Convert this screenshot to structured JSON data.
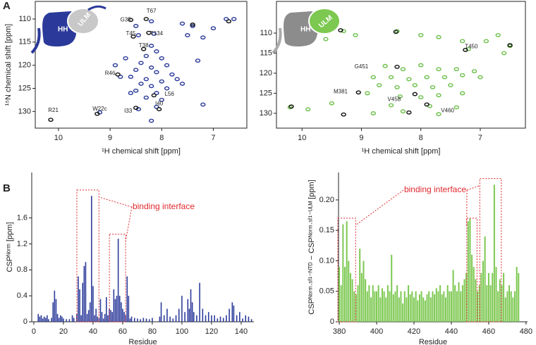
{
  "panel_labels": [
    "A",
    "B"
  ],
  "chart_data": [
    {
      "type": "scatter",
      "xlabel": "¹H chemical shift [ppm]",
      "ylabel": "¹⁵N chemical shift [ppm]",
      "inset_labels": [
        "HH",
        "ULM"
      ],
      "xlim": [
        10.45,
        6.35
      ],
      "ylim": [
        133.6,
        106.2
      ],
      "xticks": [
        10,
        9,
        8,
        7
      ],
      "yticks": [
        110,
        115,
        120,
        125,
        130
      ],
      "series": [
        {
          "color": "#2b3a9a",
          "x": [
            8.5,
            8.2,
            8.45,
            8.15,
            8.2,
            7.6,
            7.4,
            7.5,
            7.2,
            7.0,
            6.75,
            6.6,
            8.1,
            8.3,
            8.0,
            8.4,
            7.9,
            8.2,
            8.5,
            8.1,
            7.8,
            8.6,
            8.3,
            8.0,
            8.8,
            8.4,
            8.2,
            7.9,
            8.5,
            8.1,
            8.3,
            8.0,
            8.6,
            7.7,
            8.9,
            8.7,
            8.1,
            8.45,
            9.2,
            7.3,
            7.6,
            7.2,
            8.2
          ],
          "y": [
            111.5,
            110.5,
            113.5,
            113.2,
            115.8,
            111,
            111.5,
            113.5,
            114,
            112,
            110,
            110,
            117,
            118,
            118.5,
            119.5,
            120,
            120.5,
            121,
            121.5,
            122,
            122.5,
            123,
            123.5,
            122.5,
            124,
            124.5,
            125,
            125.5,
            126,
            127,
            127.5,
            126,
            123,
            120,
            118.5,
            129,
            129.5,
            130.2,
            119,
            124,
            128.5,
            132
          ]
        },
        {
          "color": "#111111",
          "x": [
            8.6,
            8.3,
            8.55,
            8.25,
            8.35,
            8.85,
            8.15,
            8.05,
            8.5,
            10.15,
            9.25,
            7.4,
            6.7
          ],
          "y": [
            110.2,
            110,
            113.8,
            113,
            116.5,
            122,
            126.5,
            129.5,
            129.2,
            131.8,
            130.5,
            111.2,
            110.5
          ]
        }
      ],
      "annotations": [
        {
          "text": "G35",
          "x": 8.7,
          "y": 110.2
        },
        {
          "text": "T67",
          "x": 8.2,
          "y": 108.3
        },
        {
          "text": "T45",
          "x": 8.6,
          "y": 113.2
        },
        {
          "text": "T134",
          "x": 8.1,
          "y": 113.2
        },
        {
          "text": "T38",
          "x": 8.35,
          "y": 115.8
        },
        {
          "text": "R46",
          "x": 9.0,
          "y": 121.8
        },
        {
          "text": "L56",
          "x": 7.85,
          "y": 126.3
        },
        {
          "text": "I40",
          "x": 8.05,
          "y": 128.3
        },
        {
          "text": "I33",
          "x": 8.65,
          "y": 129.9
        },
        {
          "text": "R21",
          "x": 10.1,
          "y": 129.8
        },
        {
          "text": "W22c",
          "x": 9.2,
          "y": 129.5
        }
      ]
    },
    {
      "type": "scatter",
      "xlabel": "¹H chemical shift [ppm]",
      "inset_labels": [
        "HH",
        "ULM"
      ],
      "xlim": [
        10.43,
        6.24
      ],
      "ylim": [
        133.7,
        102.1
      ],
      "xticks": [
        10,
        9,
        8,
        7
      ],
      "yticks": [
        110,
        115,
        120,
        125,
        130
      ],
      "series": [
        {
          "color": "#6cc04a",
          "x": [
            9.3,
            9.6,
            9.1,
            8.4,
            8.0,
            7.7,
            7.3,
            7.2,
            6.9,
            6.7,
            6.5,
            8.6,
            8.3,
            8.0,
            7.7,
            7.4,
            7.1,
            8.8,
            8.5,
            8.2,
            7.9,
            7.6,
            7.3,
            7.0,
            8.7,
            8.4,
            8.1,
            7.8,
            7.5,
            8.9,
            8.35,
            8.0,
            7.7,
            7.3,
            9.5,
            8.5,
            7.85,
            7.4,
            9.9,
            8.8,
            8.3,
            7.7,
            10.2,
            6.6
          ],
          "y": [
            109.5,
            111.5,
            110.5,
            109.5,
            110.5,
            111,
            112,
            114,
            112,
            110.5,
            113.2,
            118.2,
            119,
            118,
            119,
            119,
            119.5,
            121,
            121,
            121.5,
            121,
            121,
            120.5,
            121,
            123,
            123.5,
            123,
            123.5,
            123,
            125,
            125.8,
            126,
            125.5,
            125,
            127.5,
            128,
            128.2,
            128.5,
            129,
            130,
            129.5,
            130.2,
            128.5,
            115
          ]
        },
        {
          "color": "#111111",
          "x": [
            9.35,
            8.42,
            7.25,
            6.5,
            8.4,
            9.05,
            8.1,
            7.9,
            9.3,
            10.18,
            8.2
          ],
          "y": [
            109.3,
            109.7,
            114.2,
            113,
            118.4,
            124.8,
            125.2,
            127.8,
            130.3,
            128.3,
            129.8
          ]
        }
      ],
      "annotations": [
        {
          "text": "T450",
          "x": 7.15,
          "y": 113.4
        },
        {
          "text": "G451",
          "x": 9.0,
          "y": 118.4
        },
        {
          "text": "M381",
          "x": 9.35,
          "y": 124.6
        },
        {
          "text": "V458",
          "x": 8.45,
          "y": 126.6
        },
        {
          "text": "V460",
          "x": 7.55,
          "y": 129.4
        }
      ]
    },
    {
      "type": "bar",
      "xlabel": "Residue",
      "ylabel": "CSPᴺᵒʳᵐ [ppm]",
      "color": "#2b3a9a",
      "xlim": [
        -1.4,
        148.6
      ],
      "ylim": [
        0,
        2.3
      ],
      "xticks": [
        0,
        20,
        40,
        60,
        80,
        100,
        120,
        140
      ],
      "yticks": [
        0,
        0.4,
        0.8,
        1.2,
        1.6
      ],
      "x": [
        3,
        4,
        5,
        6,
        7,
        8,
        9,
        10,
        12,
        13,
        14,
        15,
        16,
        17,
        18,
        19,
        20,
        22,
        24,
        26,
        27,
        29,
        30,
        31,
        32,
        33,
        34,
        35,
        36,
        37,
        38,
        39,
        40,
        41,
        42,
        43,
        44,
        45,
        46,
        47,
        48,
        49,
        50,
        51,
        52,
        53,
        54,
        55,
        56,
        57,
        58,
        59,
        60,
        61,
        62,
        63,
        64,
        65,
        66,
        68,
        70,
        72,
        74,
        76,
        78,
        80,
        85,
        86,
        88,
        90,
        92,
        94,
        96,
        98,
        100,
        102,
        104,
        105,
        106,
        107,
        108,
        110,
        112,
        114,
        116,
        118,
        120,
        122,
        124,
        126,
        128,
        130,
        132,
        134,
        135,
        137,
        139,
        141,
        143,
        145,
        147
      ],
      "values": [
        0.12,
        0.08,
        0.1,
        0.05,
        0.08,
        0.06,
        0.1,
        0.04,
        0.06,
        0.3,
        0.48,
        0.35,
        0.12,
        0.06,
        0.1,
        0.08,
        0.05,
        0.04,
        0.04,
        0.1,
        0.06,
        0.12,
        0.7,
        0.5,
        0.1,
        0.6,
        0.86,
        0.92,
        0.12,
        0.18,
        0.3,
        1.94,
        0.55,
        0.1,
        0.2,
        0.08,
        0.05,
        0.35,
        0.15,
        0.05,
        0.12,
        0.38,
        0.1,
        0.2,
        0.18,
        0.15,
        0.5,
        0.35,
        0.4,
        1.28,
        0.4,
        0.3,
        0.2,
        0.15,
        0.1,
        0.7,
        0.4,
        0.05,
        0.08,
        0.06,
        0.05,
        0.04,
        0.06,
        0.05,
        0.04,
        0.06,
        0.08,
        0.3,
        0.1,
        0.2,
        0.08,
        0.05,
        0.1,
        0.2,
        0.4,
        0.15,
        0.35,
        0.2,
        0.5,
        0.3,
        0.15,
        0.1,
        0.6,
        0.2,
        0.1,
        0.15,
        0.1,
        0.1,
        0.05,
        0.08,
        0.06,
        0.1,
        0.2,
        0.3,
        0.25,
        0.1,
        0.15,
        0.05,
        0.1,
        0.08,
        0.04
      ],
      "annotation": "binding interface",
      "highlights": [
        {
          "range": [
            30,
            43
          ],
          "height": 2.03
        },
        {
          "range": [
            52,
            61
          ],
          "height": 1.35
        }
      ]
    },
    {
      "type": "bar",
      "xlabel": "Residue",
      "ylabel": "CSPᴺᵒʳᵐ·ˢᶠ¹⁻ᴺᵀᴰ − CSPᴺᵒʳᵐ·ˢᶠ¹⁻ᵁᴸᴹ [ppm]",
      "color": "#7cc850",
      "xlim": [
        379.6,
        480.8
      ],
      "ylim": [
        0,
        0.245
      ],
      "xticks": [
        380,
        400,
        420,
        440,
        460,
        480
      ],
      "yticks": [
        0,
        0.05,
        {
          "value": 0.1,
          "label": "0.10"
        },
        0.15,
        {
          "value": 0.2,
          "label": "0.20"
        }
      ],
      "x": [
        380,
        381,
        382,
        383,
        384,
        385,
        386,
        387,
        388,
        389,
        390,
        391,
        392,
        393,
        394,
        395,
        396,
        397,
        398,
        399,
        400,
        401,
        402,
        403,
        404,
        405,
        406,
        407,
        408,
        409,
        410,
        411,
        412,
        413,
        414,
        415,
        416,
        417,
        418,
        419,
        420,
        421,
        422,
        423,
        424,
        425,
        426,
        427,
        428,
        429,
        430,
        431,
        432,
        433,
        434,
        435,
        436,
        437,
        438,
        439,
        440,
        441,
        442,
        443,
        444,
        445,
        446,
        447,
        448,
        449,
        450,
        451,
        452,
        453,
        454,
        455,
        456,
        457,
        458,
        459,
        460,
        461,
        462,
        463,
        464,
        465,
        466,
        467,
        468,
        469,
        470,
        471,
        472,
        473,
        474,
        475,
        476
      ],
      "values": [
        0.09,
        0.06,
        0.16,
        0.09,
        0.165,
        0.1,
        0.08,
        0.07,
        0.05,
        0.045,
        0.06,
        0.12,
        0.08,
        0.1,
        0.07,
        0.05,
        0.06,
        0.04,
        0.06,
        0.05,
        0.05,
        0.06,
        0.04,
        0.055,
        0.05,
        0.04,
        0.06,
        0.05,
        0.11,
        0.045,
        0.05,
        0.06,
        0.04,
        0.05,
        0.03,
        0.05,
        0.04,
        0.06,
        0.045,
        0.05,
        0.04,
        0.05,
        0.035,
        0.045,
        0.05,
        0.04,
        0.035,
        0.045,
        0.05,
        0.04,
        0.05,
        0.045,
        0.055,
        0.05,
        0.06,
        0.045,
        0.05,
        0.04,
        0.06,
        0.05,
        0.05,
        0.085,
        0.06,
        0.05,
        0.065,
        0.05,
        0.06,
        0.07,
        0.08,
        0.165,
        0.17,
        0.11,
        0.09,
        0.07,
        0.05,
        0.06,
        0.08,
        0.1,
        0.14,
        0.06,
        0.08,
        0.06,
        0.08,
        0.225,
        0.09,
        0.05,
        0.07,
        0.06,
        0.08,
        0.04,
        0.05,
        0.06,
        0.05,
        0.04,
        0.05,
        0.09,
        0.08
      ],
      "annotation": "binding interface",
      "highlights": [
        {
          "range": [
            380,
            388
          ],
          "height": 0.17
        },
        {
          "range": [
            449,
            453
          ],
          "height": 0.17
        },
        {
          "range": [
            456,
            466
          ],
          "height": 0.235
        }
      ]
    }
  ]
}
